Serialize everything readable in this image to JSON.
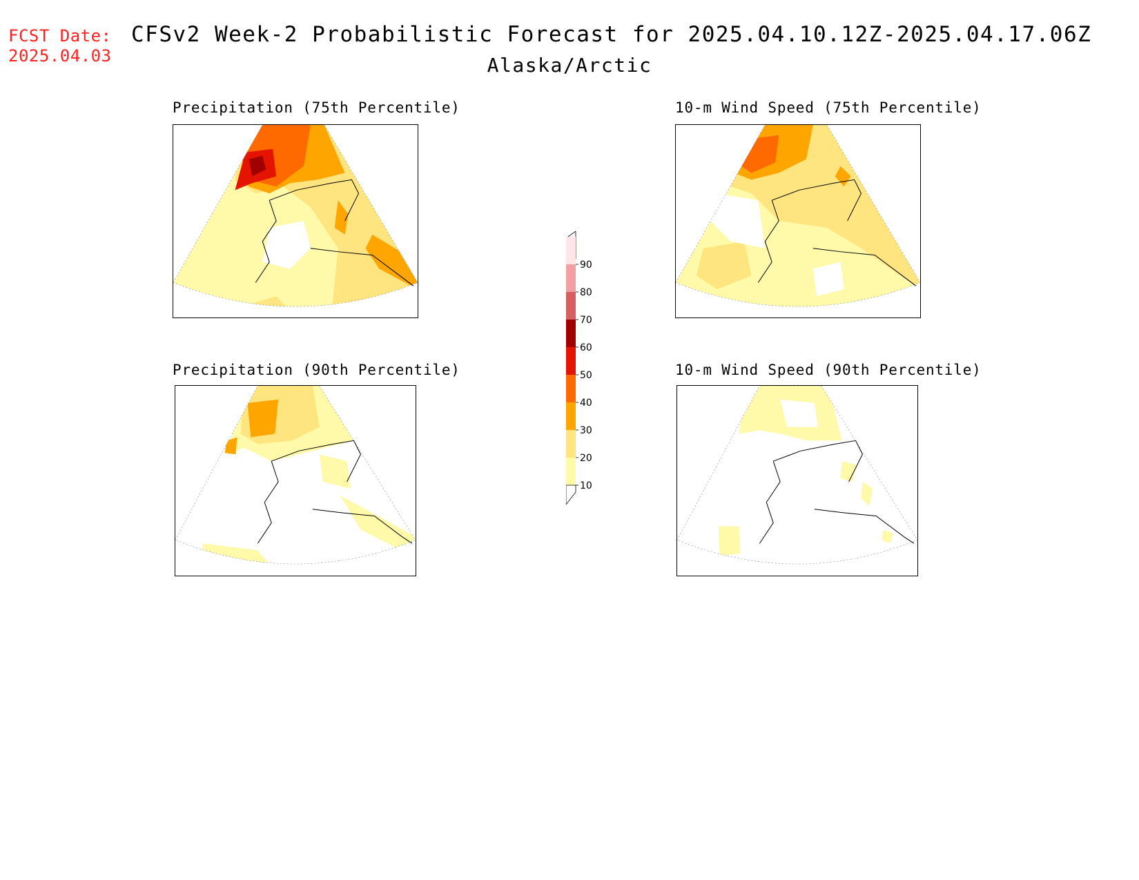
{
  "header": {
    "fcst_label": "FCST Date:",
    "fcst_date": "2025.04.03",
    "title": "CFSv2 Week-2 Probabilistic Forecast for 2025.04.10.12Z-2025.04.17.06Z",
    "region": "Alaska/Arctic"
  },
  "panels": [
    {
      "title": "Precipitation (75th Percentile)"
    },
    {
      "title": "10-m Wind Speed (75th Percentile)"
    },
    {
      "title": "Precipitation (90th Percentile)"
    },
    {
      "title": "10-m Wind Speed (90th Percentile)"
    }
  ],
  "colorbar": {
    "levels": [
      "10",
      "20",
      "30",
      "40",
      "50",
      "60",
      "70",
      "80",
      "90"
    ],
    "colors": [
      "#fffaaa",
      "#ffe57f",
      "#ffa500",
      "#ff6a00",
      "#e51400",
      "#a00000",
      "#d46060",
      "#f0a0a0",
      "#ffe5e5"
    ]
  }
}
